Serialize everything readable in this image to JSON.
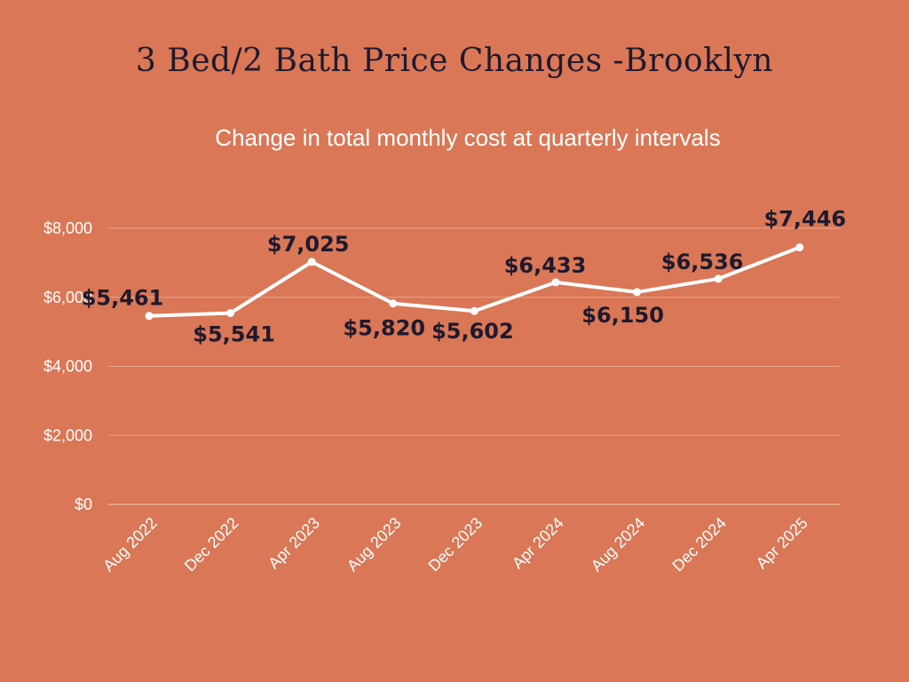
{
  "title": "3 Bed/2 Bath Price Changes -Brooklyn",
  "subtitle": "Change in total monthly cost at quarterly intervals",
  "colors": {
    "background": "#d97756",
    "line": "#ffffff",
    "grid": "#e9a68c",
    "title": "#1f1a2e",
    "data_label": "#1f1a2e"
  },
  "chart_data": {
    "type": "line",
    "categories": [
      "Aug 2022",
      "Dec 2022",
      "Apr 2023",
      "Aug 2023",
      "Dec 2023",
      "Apr 2024",
      "Aug 2024",
      "Dec 2024",
      "Apr 2025"
    ],
    "series": [
      {
        "values": [
          5461,
          5541,
          7025,
          5820,
          5602,
          6433,
          6150,
          6536,
          7446
        ]
      }
    ],
    "data_labels": [
      "$5,461",
      "$5,541",
      "$7,025",
      "$5,820",
      "$5,602",
      "$6,433",
      "$6,150",
      "$6,536",
      "$7,446"
    ],
    "ylim": [
      0,
      8000
    ],
    "yticks": [
      0,
      2000,
      4000,
      6000,
      8000
    ],
    "ytick_labels": [
      "$0",
      "$2,000",
      "$4,000",
      "$6,000",
      "$8,000"
    ],
    "grid": true,
    "legend": false
  }
}
